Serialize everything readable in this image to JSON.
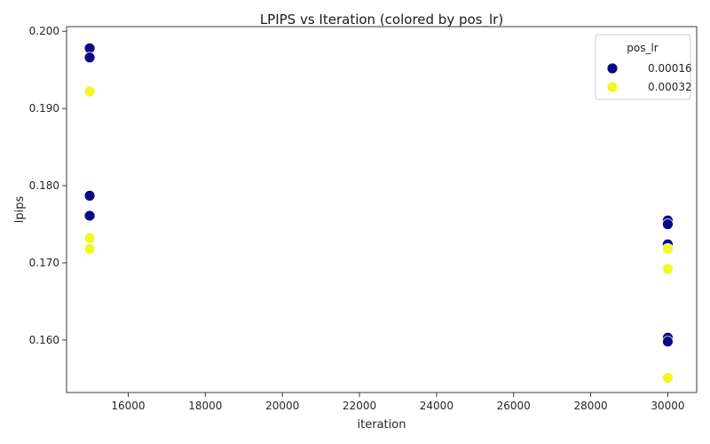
{
  "chart_data": {
    "type": "scatter",
    "title": "LPIPS vs Iteration (colored by pos_lr)",
    "xlabel": "iteration",
    "ylabel": "lpips",
    "xlim": [
      14400,
      30750
    ],
    "ylim": [
      0.1532,
      0.2006
    ],
    "xticks": [
      16000,
      18000,
      20000,
      22000,
      24000,
      26000,
      28000,
      30000
    ],
    "yticks": [
      0.16,
      0.17,
      0.18,
      0.19,
      0.2
    ],
    "ytick_labels": [
      "0.160",
      "0.170",
      "0.180",
      "0.190",
      "0.200"
    ],
    "grid": false,
    "legend": {
      "title": "pos_lr",
      "position": "top-right"
    },
    "series": [
      {
        "name": "0.00016",
        "color": "#0d0887",
        "points": [
          {
            "x": 15000,
            "y": 0.1978
          },
          {
            "x": 15000,
            "y": 0.1966
          },
          {
            "x": 15000,
            "y": 0.1787
          },
          {
            "x": 15000,
            "y": 0.1761
          },
          {
            "x": 30000,
            "y": 0.1755
          },
          {
            "x": 30000,
            "y": 0.175
          },
          {
            "x": 30000,
            "y": 0.1724
          },
          {
            "x": 30000,
            "y": 0.1603
          },
          {
            "x": 30000,
            "y": 0.1598
          }
        ]
      },
      {
        "name": "0.00032",
        "color": "#f0f921",
        "points": [
          {
            "x": 15000,
            "y": 0.1922
          },
          {
            "x": 15000,
            "y": 0.1732
          },
          {
            "x": 15000,
            "y": 0.1718
          },
          {
            "x": 30000,
            "y": 0.1718
          },
          {
            "x": 30000,
            "y": 0.1692
          },
          {
            "x": 30000,
            "y": 0.1551
          }
        ]
      }
    ]
  }
}
